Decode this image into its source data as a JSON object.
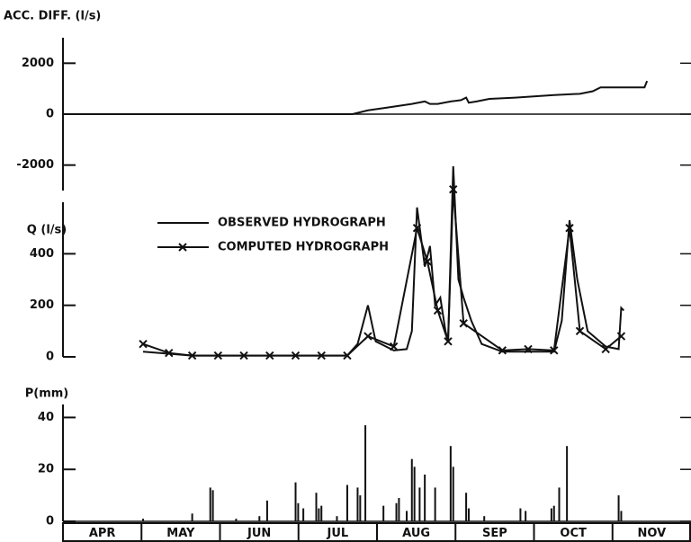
{
  "chart_data": [
    {
      "type": "line",
      "y_label": "ACC. DIFF. (l/s)",
      "ylim": [
        -3000,
        3000
      ],
      "yticks": [
        2000,
        0,
        -2000
      ],
      "xlim": [
        0,
        243
      ],
      "series": [
        {
          "color": "#111111",
          "x": [
            0,
            112,
            118,
            125,
            135,
            140,
            142,
            145,
            150,
            154,
            156,
            157,
            160,
            165,
            175,
            190,
            200,
            205,
            208,
            212,
            220,
            225,
            226
          ],
          "values": [
            0,
            0,
            150,
            250,
            400,
            500,
            400,
            400,
            500,
            550,
            650,
            450,
            500,
            600,
            650,
            750,
            800,
            900,
            1050,
            1050,
            1050,
            1050,
            1300
          ]
        }
      ]
    },
    {
      "type": "line",
      "y_label": "Q (l/s)",
      "ylim": [
        0,
        600
      ],
      "yticks": [
        0,
        200,
        400
      ],
      "xlim": [
        0,
        243
      ],
      "series": [
        {
          "name": "OBSERVED HYDROGRAPH",
          "color": "#111111",
          "x": [
            31,
            50,
            80,
            110,
            114,
            118,
            121,
            128,
            133,
            135,
            137,
            140,
            142,
            144,
            146,
            148,
            149,
            151,
            153,
            155,
            158,
            162,
            170,
            180,
            190,
            193,
            196,
            199,
            203,
            210,
            215,
            216,
            217
          ],
          "values": [
            20,
            5,
            5,
            5,
            50,
            200,
            60,
            25,
            30,
            100,
            580,
            350,
            430,
            200,
            230,
            100,
            60,
            740,
            300,
            230,
            140,
            50,
            20,
            20,
            20,
            140,
            530,
            300,
            100,
            40,
            30,
            190,
            180
          ]
        },
        {
          "name": "COMPUTED HYDROGRAPH",
          "color": "#111111",
          "marker": "x",
          "x": [
            31,
            41,
            50,
            60,
            70,
            80,
            90,
            100,
            110,
            118,
            128,
            137,
            141,
            145,
            149,
            151,
            155,
            170,
            180,
            190,
            196,
            200,
            210,
            216
          ],
          "values": [
            50,
            15,
            5,
            5,
            5,
            5,
            5,
            5,
            5,
            80,
            40,
            500,
            370,
            180,
            60,
            650,
            130,
            25,
            30,
            25,
            500,
            100,
            30,
            80
          ]
        }
      ]
    },
    {
      "type": "bar",
      "y_label": "P(mm)",
      "ylim": [
        0,
        45
      ],
      "yticks": [
        0,
        20,
        40
      ],
      "xlim": [
        0,
        243
      ],
      "color": "#111111",
      "categories": [
        "APR",
        "MAY",
        "JUN",
        "JUL",
        "AUG",
        "SEP",
        "OCT",
        "NOV"
      ],
      "x": [
        31,
        50,
        57,
        58,
        67,
        76,
        79,
        90,
        91,
        93,
        98,
        99,
        100,
        106,
        110,
        114,
        115,
        117,
        124,
        129,
        130,
        133,
        135,
        136,
        138,
        140,
        144,
        150,
        151,
        156,
        157,
        163,
        177,
        179,
        189,
        190,
        192,
        195,
        215,
        216
      ],
      "values": [
        1,
        3,
        13,
        12,
        1,
        2,
        8,
        15,
        7,
        5,
        11,
        5,
        6,
        2,
        14,
        13,
        10,
        37,
        6,
        7,
        9,
        4,
        24,
        21,
        13,
        18,
        13,
        29,
        21,
        11,
        5,
        2,
        5,
        4,
        5,
        6,
        13,
        29,
        10,
        4
      ]
    }
  ]
}
